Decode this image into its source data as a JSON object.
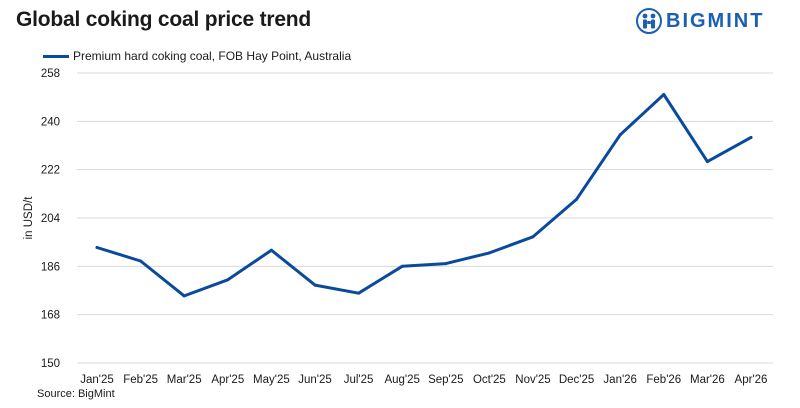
{
  "header": {
    "title": "Global coking coal price trend",
    "brand": "BIGMINT"
  },
  "footer": {
    "source": "Source: BigMint"
  },
  "colors": {
    "series": "#0a4a9c",
    "grid": "#d9d9d9",
    "brand": "#1a5fb4"
  },
  "chart_data": {
    "type": "line",
    "title": "Global coking coal price trend",
    "xlabel": "",
    "ylabel": "in USD/t",
    "categories": [
      "Jan'25",
      "Feb'25",
      "Mar'25",
      "Apr'25",
      "May'25",
      "Jun'25",
      "Jul'25",
      "Aug'25",
      "Sep'25",
      "Oct'25",
      "Nov'25",
      "Dec'25",
      "Jan'26",
      "Feb'26",
      "Mar'26",
      "Apr'26"
    ],
    "series": [
      {
        "name": "Premium hard coking coal, FOB Hay Point, Australia",
        "values": [
          193,
          188,
          175,
          181,
          192,
          179,
          176,
          186,
          187,
          191,
          197,
          211,
          235,
          250,
          225,
          234
        ]
      }
    ],
    "ylim": [
      150,
      258
    ],
    "yticks": [
      150,
      168,
      186,
      204,
      222,
      240,
      258
    ],
    "grid": true,
    "legend": "top-left"
  }
}
